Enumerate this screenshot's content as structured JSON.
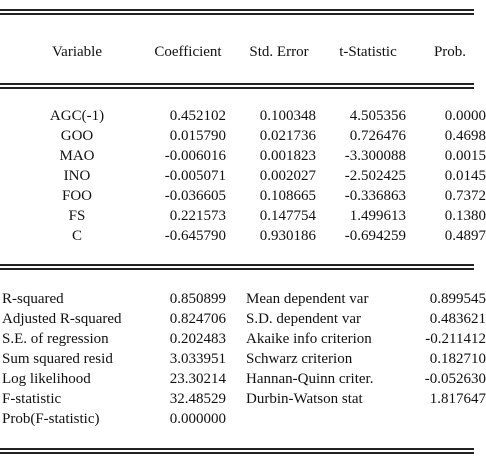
{
  "coef_table": {
    "headers": {
      "variable": "Variable",
      "coefficient": "Coefficient",
      "std_error": "Std. Error",
      "t_statistic": "t-Statistic",
      "prob": "Prob."
    },
    "rows": [
      {
        "variable": "AGC(-1)",
        "coefficient": "0.452102",
        "std_error": "0.100348",
        "t_statistic": "4.505356",
        "prob": "0.0000"
      },
      {
        "variable": "GOO",
        "coefficient": "0.015790",
        "std_error": "0.021736",
        "t_statistic": "0.726476",
        "prob": "0.4698"
      },
      {
        "variable": "MAO",
        "coefficient": "-0.006016",
        "std_error": "0.001823",
        "t_statistic": "-3.300088",
        "prob": "0.0015"
      },
      {
        "variable": "INO",
        "coefficient": "-0.005071",
        "std_error": "0.002027",
        "t_statistic": "-2.502425",
        "prob": "0.0145"
      },
      {
        "variable": "FOO",
        "coefficient": "-0.036605",
        "std_error": "0.108665",
        "t_statistic": "-0.336863",
        "prob": "0.7372"
      },
      {
        "variable": "FS",
        "coefficient": "0.221573",
        "std_error": "0.147754",
        "t_statistic": "1.499613",
        "prob": "0.1380"
      },
      {
        "variable": "C",
        "coefficient": "-0.645790",
        "std_error": "0.930186",
        "t_statistic": "-0.694259",
        "prob": "0.4897"
      }
    ]
  },
  "stats_table": {
    "rows": [
      {
        "label": "R-squared",
        "value": "0.850899",
        "label2": "Mean dependent var",
        "value2": "0.899545"
      },
      {
        "label": "Adjusted R-squared",
        "value": "0.824706",
        "label2": "S.D. dependent var",
        "value2": "0.483621"
      },
      {
        "label": "S.E. of regression",
        "value": "0.202483",
        "label2": "Akaike info criterion",
        "value2": "-0.211412"
      },
      {
        "label": "Sum squared resid",
        "value": "3.033951",
        "label2": "Schwarz criterion",
        "value2": "0.182710"
      },
      {
        "label": "Log likelihood",
        "value": "23.30214",
        "label2": "Hannan-Quinn criter.",
        "value2": "-0.052630"
      },
      {
        "label": "F-statistic",
        "value": "32.48529",
        "label2": "Durbin-Watson stat",
        "value2": "1.817647"
      },
      {
        "label": "Prob(F-statistic)",
        "value": "0.000000",
        "label2": "",
        "value2": ""
      }
    ]
  }
}
